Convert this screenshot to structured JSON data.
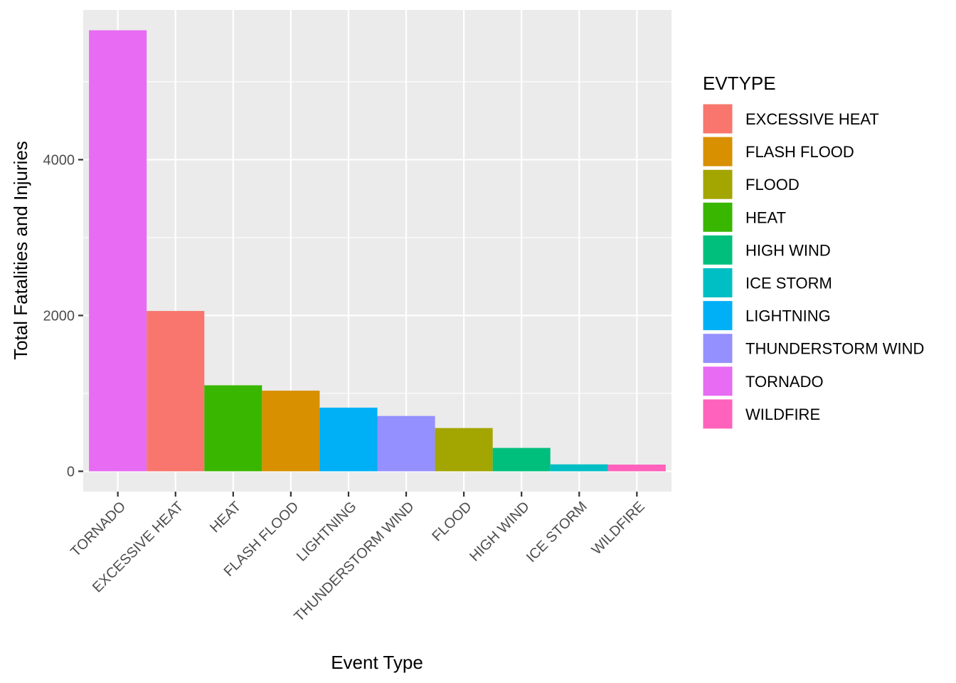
{
  "chart_data": {
    "type": "bar",
    "title": "",
    "xlabel": "Event Type",
    "ylabel": "Total Fatalities and Injuries",
    "categories": [
      "TORNADO",
      "EXCESSIVE HEAT",
      "HEAT",
      "FLASH FLOOD",
      "LIGHTNING",
      "THUNDERSTORM WIND",
      "FLOOD",
      "HIGH WIND",
      "ICE STORM",
      "WILDFIRE"
    ],
    "values": [
      5661,
      2058,
      1104,
      1035,
      817,
      710,
      555,
      300,
      89,
      86
    ],
    "ylim": [
      -261,
      5922
    ],
    "yticks": [
      0,
      2000,
      4000
    ],
    "ytick_labels": [
      "0",
      "2000",
      "4000"
    ],
    "grid": true,
    "legend": {
      "title": "EVTYPE",
      "position": "right",
      "entries": [
        "EXCESSIVE HEAT",
        "FLASH FLOOD",
        "FLOOD",
        "HEAT",
        "HIGH WIND",
        "ICE STORM",
        "LIGHTNING",
        "THUNDERSTORM WIND",
        "TORNADO",
        "WILDFIRE"
      ]
    },
    "colors": {
      "EXCESSIVE HEAT": "#F8766D",
      "FLASH FLOOD": "#D89000",
      "FLOOD": "#A3A500",
      "HEAT": "#39B600",
      "HIGH WIND": "#00BF7D",
      "ICE STORM": "#00BFC4",
      "LIGHTNING": "#00B0F6",
      "THUNDERSTORM WIND": "#9590FF",
      "TORNADO": "#E76BF3",
      "WILDFIRE": "#FF62BC"
    },
    "panel_background": "#EBEBEB",
    "gridline_color": "#FFFFFF"
  }
}
